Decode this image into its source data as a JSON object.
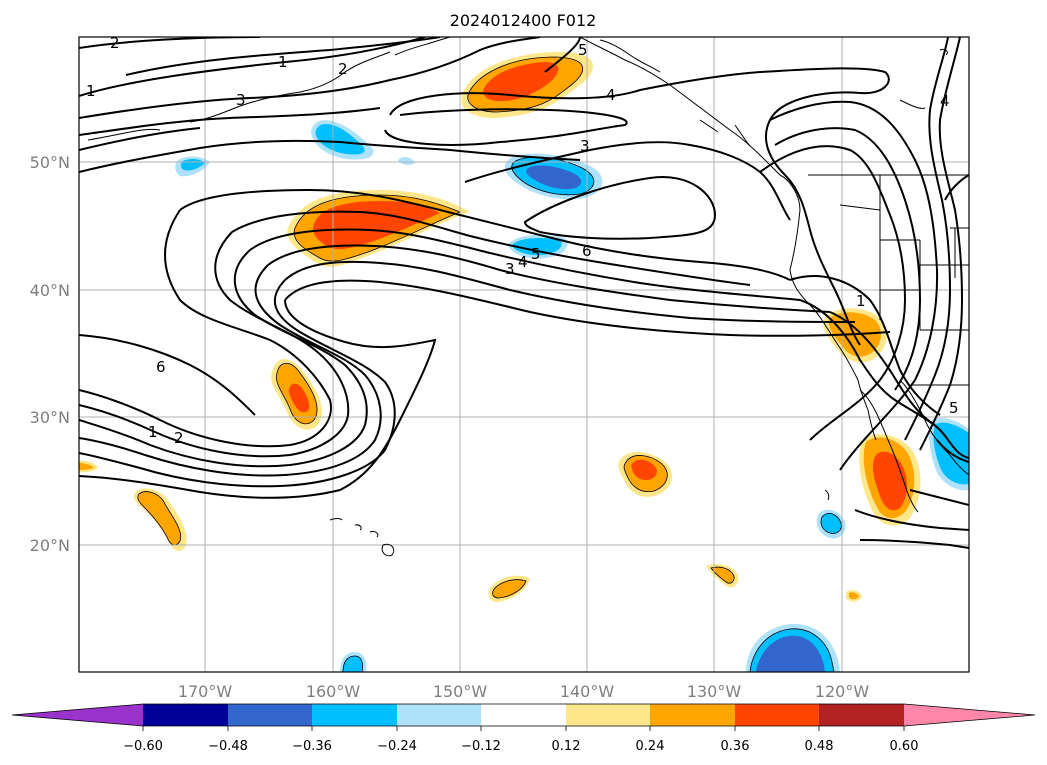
{
  "title": "2024012400 F012",
  "lat_labels": [
    "50°N",
    "40°N",
    "30°N",
    "20°N"
  ],
  "lon_labels": [
    "170°W",
    "160°W",
    "150°W",
    "140°W",
    "130°W",
    "120°W"
  ],
  "contour_labels": [
    "2",
    "1",
    "2",
    "1",
    "3",
    "5",
    "4",
    "3",
    "6",
    "5",
    "4",
    "3",
    "6",
    "1",
    "2",
    "1",
    "5",
    "4"
  ],
  "colorbar": {
    "ticks": [
      "−0.60",
      "−0.48",
      "−0.36",
      "−0.24",
      "−0.12",
      "0.12",
      "0.24",
      "0.36",
      "0.48",
      "0.60"
    ],
    "colors": [
      "#9933cc",
      "#000099",
      "#3366cc",
      "#00bfff",
      "#aee1fa",
      "#ffffff",
      "#fde78a",
      "#ffa500",
      "#ff4500",
      "#b22222",
      "#ff88aa"
    ]
  },
  "colors": {
    "neg_light": "#aee1fa",
    "neg_mid": "#00bfff",
    "neg_dark": "#3366cc",
    "pos_light": "#fde78a",
    "pos_mid": "#ffa500",
    "pos_dark": "#ff4500"
  }
}
